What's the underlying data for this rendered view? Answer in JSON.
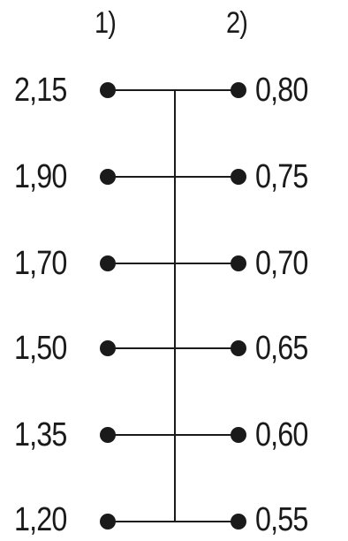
{
  "headers": {
    "left": "1)",
    "right": "2)"
  },
  "rows": [
    {
      "left": "2,15",
      "right": "0,80"
    },
    {
      "left": "1,90",
      "right": "0,75"
    },
    {
      "left": "1,70",
      "right": "0,70"
    },
    {
      "left": "1,50",
      "right": "0,65"
    },
    {
      "left": "1,35",
      "right": "0,60"
    },
    {
      "left": "1,20",
      "right": "0,55"
    }
  ],
  "colors": {
    "ink": "#1a1a1a",
    "background": "#ffffff"
  }
}
